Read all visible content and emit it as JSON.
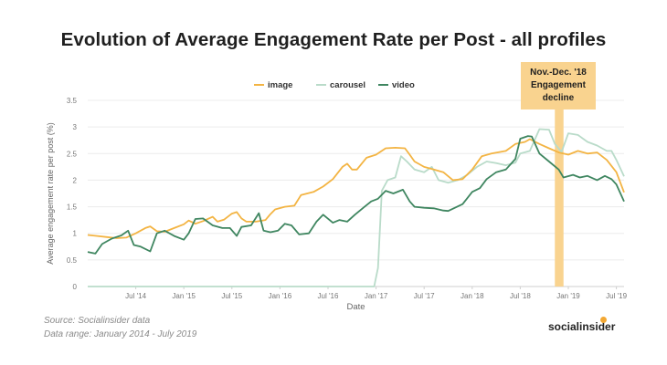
{
  "title": "Evolution of Average Engagement Rate per Post - all profiles",
  "source_lines": [
    "Source: Socialinsider data",
    "Data range: January 2014 - July 2019"
  ],
  "brand": "socialinsider",
  "annotation": {
    "lines": [
      "Nov.-Dec. '18",
      "Engagement",
      "decline"
    ],
    "x_start": 2018.86,
    "x_end": 2018.95,
    "color": "#f9d38f"
  },
  "chart_data": {
    "type": "line",
    "title": "Evolution of Average Engagement Rate per Post - all profiles",
    "xlabel": "Date",
    "ylabel": "Average engagement rate per post (%)",
    "xlim": [
      2014.0,
      2019.58
    ],
    "ylim": [
      0,
      3.5
    ],
    "y_ticks": [
      "0",
      "0.5",
      "1",
      "1.5",
      "2",
      "2.5",
      "3",
      "3.5"
    ],
    "x_ticks": [
      {
        "label": "Jul '14",
        "x": 2014.5
      },
      {
        "label": "Jan '15",
        "x": 2015.0
      },
      {
        "label": "Jul '15",
        "x": 2015.5
      },
      {
        "label": "Jan '16",
        "x": 2016.0
      },
      {
        "label": "Jul '16",
        "x": 2016.5
      },
      {
        "label": "Jan '17",
        "x": 2017.0
      },
      {
        "label": "Jul '17",
        "x": 2017.5
      },
      {
        "label": "Jan '18",
        "x": 2018.0
      },
      {
        "label": "Jul '18",
        "x": 2018.5
      },
      {
        "label": "Jan '19",
        "x": 2019.0
      },
      {
        "label": "Jul '19",
        "x": 2019.5
      }
    ],
    "grid": true,
    "legend_position": "top-center",
    "series": [
      {
        "name": "image",
        "color": "#f3b443",
        "points": [
          [
            2014.0,
            0.97
          ],
          [
            2014.1,
            0.95
          ],
          [
            2014.2,
            0.93
          ],
          [
            2014.3,
            0.91
          ],
          [
            2014.4,
            0.92
          ],
          [
            2014.5,
            1.0
          ],
          [
            2014.6,
            1.1
          ],
          [
            2014.65,
            1.13
          ],
          [
            2014.72,
            1.04
          ],
          [
            2014.8,
            1.03
          ],
          [
            2014.9,
            1.1
          ],
          [
            2015.0,
            1.17
          ],
          [
            2015.05,
            1.24
          ],
          [
            2015.12,
            1.18
          ],
          [
            2015.2,
            1.23
          ],
          [
            2015.3,
            1.31
          ],
          [
            2015.35,
            1.22
          ],
          [
            2015.42,
            1.26
          ],
          [
            2015.5,
            1.37
          ],
          [
            2015.55,
            1.4
          ],
          [
            2015.6,
            1.28
          ],
          [
            2015.65,
            1.22
          ],
          [
            2015.75,
            1.22
          ],
          [
            2015.85,
            1.25
          ],
          [
            2015.9,
            1.36
          ],
          [
            2015.95,
            1.45
          ],
          [
            2016.05,
            1.5
          ],
          [
            2016.15,
            1.52
          ],
          [
            2016.22,
            1.72
          ],
          [
            2016.35,
            1.78
          ],
          [
            2016.45,
            1.88
          ],
          [
            2016.55,
            2.02
          ],
          [
            2016.65,
            2.25
          ],
          [
            2016.7,
            2.31
          ],
          [
            2016.75,
            2.2
          ],
          [
            2016.8,
            2.2
          ],
          [
            2016.9,
            2.42
          ],
          [
            2017.0,
            2.48
          ],
          [
            2017.1,
            2.6
          ],
          [
            2017.2,
            2.61
          ],
          [
            2017.3,
            2.6
          ],
          [
            2017.35,
            2.48
          ],
          [
            2017.4,
            2.35
          ],
          [
            2017.5,
            2.25
          ],
          [
            2017.6,
            2.2
          ],
          [
            2017.7,
            2.15
          ],
          [
            2017.8,
            2.0
          ],
          [
            2017.9,
            2.02
          ],
          [
            2018.0,
            2.2
          ],
          [
            2018.1,
            2.45
          ],
          [
            2018.2,
            2.5
          ],
          [
            2018.35,
            2.55
          ],
          [
            2018.45,
            2.68
          ],
          [
            2018.55,
            2.72
          ],
          [
            2018.6,
            2.77
          ],
          [
            2018.7,
            2.68
          ],
          [
            2018.8,
            2.6
          ],
          [
            2018.9,
            2.52
          ],
          [
            2019.0,
            2.48
          ],
          [
            2019.1,
            2.55
          ],
          [
            2019.2,
            2.5
          ],
          [
            2019.3,
            2.52
          ],
          [
            2019.4,
            2.38
          ],
          [
            2019.5,
            2.15
          ],
          [
            2019.58,
            1.77
          ]
        ]
      },
      {
        "name": "carousel",
        "color": "#b9dbc9",
        "points": [
          [
            2014.0,
            0.0
          ],
          [
            2016.98,
            0.0
          ],
          [
            2017.02,
            0.35
          ],
          [
            2017.06,
            1.8
          ],
          [
            2017.12,
            2.0
          ],
          [
            2017.2,
            2.05
          ],
          [
            2017.26,
            2.45
          ],
          [
            2017.32,
            2.35
          ],
          [
            2017.4,
            2.2
          ],
          [
            2017.5,
            2.15
          ],
          [
            2017.58,
            2.25
          ],
          [
            2017.65,
            2.0
          ],
          [
            2017.75,
            1.95
          ],
          [
            2017.85,
            2.0
          ],
          [
            2017.95,
            2.1
          ],
          [
            2018.05,
            2.25
          ],
          [
            2018.15,
            2.35
          ],
          [
            2018.25,
            2.32
          ],
          [
            2018.35,
            2.28
          ],
          [
            2018.45,
            2.33
          ],
          [
            2018.5,
            2.5
          ],
          [
            2018.6,
            2.55
          ],
          [
            2018.7,
            2.96
          ],
          [
            2018.8,
            2.95
          ],
          [
            2018.86,
            2.68
          ],
          [
            2018.93,
            2.53
          ],
          [
            2019.0,
            2.88
          ],
          [
            2019.1,
            2.85
          ],
          [
            2019.2,
            2.72
          ],
          [
            2019.3,
            2.65
          ],
          [
            2019.4,
            2.55
          ],
          [
            2019.45,
            2.55
          ],
          [
            2019.5,
            2.38
          ],
          [
            2019.58,
            2.07
          ]
        ]
      },
      {
        "name": "video",
        "color": "#3f8660",
        "points": [
          [
            2014.0,
            0.65
          ],
          [
            2014.08,
            0.62
          ],
          [
            2014.15,
            0.8
          ],
          [
            2014.25,
            0.9
          ],
          [
            2014.35,
            0.96
          ],
          [
            2014.42,
            1.05
          ],
          [
            2014.48,
            0.78
          ],
          [
            2014.55,
            0.75
          ],
          [
            2014.65,
            0.66
          ],
          [
            2014.72,
            1.0
          ],
          [
            2014.8,
            1.05
          ],
          [
            2014.9,
            0.95
          ],
          [
            2015.0,
            0.88
          ],
          [
            2015.05,
            1.0
          ],
          [
            2015.12,
            1.27
          ],
          [
            2015.2,
            1.28
          ],
          [
            2015.3,
            1.15
          ],
          [
            2015.4,
            1.1
          ],
          [
            2015.48,
            1.1
          ],
          [
            2015.55,
            0.95
          ],
          [
            2015.6,
            1.12
          ],
          [
            2015.7,
            1.15
          ],
          [
            2015.78,
            1.38
          ],
          [
            2015.83,
            1.05
          ],
          [
            2015.9,
            1.02
          ],
          [
            2015.98,
            1.05
          ],
          [
            2016.05,
            1.18
          ],
          [
            2016.12,
            1.15
          ],
          [
            2016.2,
            0.98
          ],
          [
            2016.3,
            1.0
          ],
          [
            2016.38,
            1.22
          ],
          [
            2016.45,
            1.35
          ],
          [
            2016.55,
            1.2
          ],
          [
            2016.62,
            1.25
          ],
          [
            2016.7,
            1.22
          ],
          [
            2016.78,
            1.35
          ],
          [
            2016.88,
            1.5
          ],
          [
            2016.95,
            1.6
          ],
          [
            2017.02,
            1.65
          ],
          [
            2017.1,
            1.8
          ],
          [
            2017.18,
            1.75
          ],
          [
            2017.28,
            1.82
          ],
          [
            2017.35,
            1.6
          ],
          [
            2017.4,
            1.5
          ],
          [
            2017.5,
            1.48
          ],
          [
            2017.6,
            1.47
          ],
          [
            2017.7,
            1.43
          ],
          [
            2017.75,
            1.42
          ],
          [
            2017.82,
            1.48
          ],
          [
            2017.9,
            1.55
          ],
          [
            2018.0,
            1.78
          ],
          [
            2018.08,
            1.85
          ],
          [
            2018.15,
            2.02
          ],
          [
            2018.25,
            2.15
          ],
          [
            2018.35,
            2.2
          ],
          [
            2018.45,
            2.4
          ],
          [
            2018.5,
            2.78
          ],
          [
            2018.58,
            2.83
          ],
          [
            2018.62,
            2.82
          ],
          [
            2018.7,
            2.5
          ],
          [
            2018.8,
            2.35
          ],
          [
            2018.9,
            2.2
          ],
          [
            2018.95,
            2.05
          ],
          [
            2019.05,
            2.1
          ],
          [
            2019.12,
            2.05
          ],
          [
            2019.2,
            2.08
          ],
          [
            2019.3,
            2.0
          ],
          [
            2019.38,
            2.08
          ],
          [
            2019.45,
            2.02
          ],
          [
            2019.5,
            1.92
          ],
          [
            2019.58,
            1.6
          ]
        ]
      }
    ]
  }
}
